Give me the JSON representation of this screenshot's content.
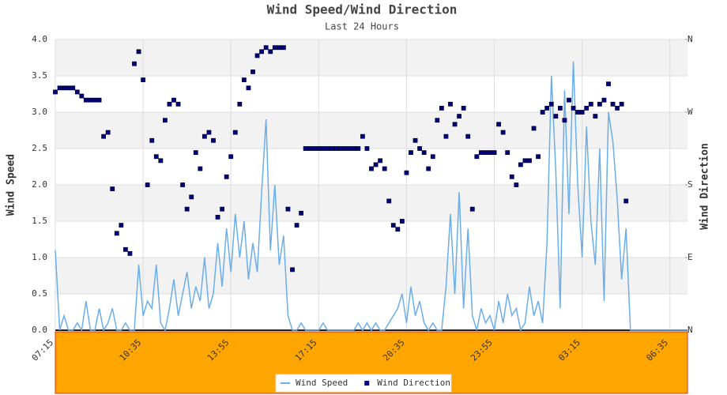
{
  "chart_data": {
    "type": "line",
    "title": "Wind Speed/Wind Direction",
    "subtitle": "Last 24 Hours",
    "ylabel": "Wind Speed",
    "y2label": "Wind Direction",
    "xlim": [
      0,
      1440
    ],
    "xticks": [
      {
        "value": 0,
        "label": "07:15"
      },
      {
        "value": 200,
        "label": "10:35"
      },
      {
        "value": 400,
        "label": "13:55"
      },
      {
        "value": 600,
        "label": "17:15"
      },
      {
        "value": 800,
        "label": "20:35"
      },
      {
        "value": 1000,
        "label": "23:55"
      },
      {
        "value": 1200,
        "label": "03:15"
      },
      {
        "value": 1400,
        "label": "06:35"
      }
    ],
    "ylim": [
      0,
      4
    ],
    "yticks": [
      {
        "value": 0,
        "label": "0.0"
      },
      0.5,
      {
        "value": 1,
        "label": "1.0"
      },
      1.5,
      {
        "value": 2,
        "label": "2.0"
      },
      2.5,
      {
        "value": 3,
        "label": "3.0"
      },
      3.5,
      {
        "value": 4,
        "label": "4.0"
      }
    ],
    "y2lim": [
      0,
      360
    ],
    "y2ticks": [
      {
        "value": 0,
        "label": "N"
      },
      {
        "value": 90,
        "label": "E"
      },
      {
        "value": 180,
        "label": "S"
      },
      {
        "value": 270,
        "label": "W"
      },
      {
        "value": 360,
        "label": "N"
      }
    ],
    "grid": true,
    "legend": "bottom",
    "series": [
      {
        "name": "Wind Speed",
        "type": "line",
        "color": "#6aaeea",
        "x": [
          0,
          10,
          20,
          30,
          40,
          50,
          60,
          70,
          80,
          90,
          100,
          110,
          120,
          130,
          140,
          150,
          160,
          170,
          180,
          190,
          200,
          210,
          220,
          230,
          240,
          250,
          260,
          270,
          280,
          290,
          300,
          310,
          320,
          330,
          340,
          350,
          360,
          370,
          380,
          390,
          400,
          410,
          420,
          430,
          440,
          450,
          460,
          470,
          480,
          490,
          500,
          510,
          520,
          530,
          540,
          550,
          560,
          570,
          580,
          590,
          600,
          610,
          620,
          630,
          640,
          650,
          660,
          670,
          680,
          690,
          700,
          710,
          720,
          730,
          740,
          750,
          760,
          770,
          780,
          790,
          800,
          810,
          820,
          830,
          840,
          850,
          860,
          870,
          880,
          890,
          900,
          910,
          920,
          930,
          940,
          950,
          960,
          970,
          980,
          990,
          1000,
          1010,
          1020,
          1030,
          1040,
          1050,
          1060,
          1070,
          1080,
          1090,
          1100,
          1110,
          1120,
          1130,
          1140,
          1150,
          1160,
          1170,
          1180,
          1190,
          1200,
          1210,
          1220,
          1230,
          1240,
          1250,
          1260,
          1270,
          1280,
          1290,
          1300,
          1310,
          1320,
          1330,
          1340,
          1350,
          1360,
          1370,
          1380,
          1390,
          1400,
          1410,
          1420,
          1430,
          1440
        ],
        "values": [
          1.1,
          0.0,
          0.2,
          0.0,
          0.0,
          0.1,
          0.0,
          0.4,
          0.0,
          0.0,
          0.3,
          0.0,
          0.1,
          0.3,
          0.0,
          0.0,
          0.1,
          0.0,
          0.0,
          0.9,
          0.2,
          0.4,
          0.3,
          0.9,
          0.1,
          0.0,
          0.3,
          0.7,
          0.2,
          0.5,
          0.8,
          0.3,
          0.6,
          0.4,
          1.0,
          0.3,
          0.5,
          1.2,
          0.6,
          1.4,
          0.8,
          1.6,
          1.0,
          1.5,
          0.7,
          1.2,
          0.8,
          1.9,
          2.9,
          1.1,
          2.0,
          0.9,
          1.3,
          0.2,
          0.0,
          0.0,
          0.1,
          0.0,
          0.0,
          0.0,
          0.0,
          0.1,
          0.0,
          0.0,
          0.0,
          0.0,
          0.0,
          0.0,
          0.0,
          0.1,
          0.0,
          0.1,
          0.0,
          0.1,
          0.0,
          0.0,
          0.1,
          0.2,
          0.3,
          0.5,
          0.1,
          0.6,
          0.2,
          0.4,
          0.1,
          0.0,
          0.1,
          0.0,
          0.0,
          0.6,
          1.6,
          0.5,
          1.9,
          0.3,
          1.4,
          0.2,
          0.0,
          0.3,
          0.1,
          0.2,
          0.0,
          0.4,
          0.1,
          0.5,
          0.2,
          0.3,
          0.0,
          0.1,
          0.6,
          0.2,
          0.4,
          0.1,
          1.2,
          3.5,
          2.2,
          0.3,
          3.3,
          1.6,
          3.7,
          2.0,
          1.0,
          2.8,
          1.5,
          0.9,
          2.5,
          0.4,
          3.0,
          2.6,
          1.8,
          0.7,
          1.4,
          0.0,
          0.0,
          0.0,
          0.0,
          0.0,
          0.0,
          0.0,
          0.0,
          0.0,
          0.0,
          0.0,
          0.0,
          0.0,
          0.0
        ]
      },
      {
        "name": "Wind Direction",
        "type": "scatter",
        "axis": "y2",
        "color": "#000080",
        "x": [
          0,
          10,
          20,
          30,
          40,
          50,
          60,
          70,
          80,
          90,
          100,
          110,
          120,
          130,
          140,
          150,
          160,
          170,
          180,
          190,
          200,
          210,
          220,
          230,
          240,
          250,
          260,
          270,
          280,
          290,
          300,
          310,
          320,
          330,
          340,
          350,
          360,
          370,
          380,
          390,
          400,
          410,
          420,
          430,
          440,
          450,
          460,
          470,
          480,
          490,
          500,
          510,
          520,
          530,
          540,
          550,
          560,
          570,
          580,
          590,
          600,
          610,
          620,
          630,
          640,
          650,
          660,
          670,
          680,
          690,
          700,
          710,
          720,
          730,
          740,
          750,
          760,
          770,
          780,
          790,
          800,
          810,
          820,
          830,
          840,
          850,
          860,
          870,
          880,
          890,
          900,
          910,
          920,
          930,
          940,
          950,
          960,
          970,
          980,
          990,
          1000,
          1010,
          1020,
          1030,
          1040,
          1050,
          1060,
          1070,
          1080,
          1090,
          1100,
          1110,
          1120,
          1130,
          1140,
          1150,
          1160,
          1170,
          1180,
          1190,
          1200,
          1210,
          1220,
          1230,
          1240,
          1250,
          1260,
          1270,
          1280,
          1290,
          1300
        ],
        "values": [
          295,
          300,
          300,
          300,
          300,
          295,
          290,
          285,
          285,
          285,
          285,
          240,
          245,
          175,
          120,
          130,
          100,
          95,
          330,
          345,
          310,
          180,
          235,
          215,
          210,
          260,
          280,
          285,
          280,
          180,
          150,
          165,
          220,
          200,
          240,
          245,
          235,
          140,
          150,
          190,
          215,
          245,
          280,
          310,
          300,
          320,
          340,
          345,
          350,
          345,
          350,
          350,
          350,
          150,
          75,
          130,
          145,
          225,
          225,
          225,
          225,
          225,
          225,
          225,
          225,
          225,
          225,
          225,
          225,
          225,
          240,
          225,
          200,
          205,
          210,
          200,
          160,
          130,
          125,
          135,
          195,
          220,
          235,
          225,
          220,
          200,
          215,
          260,
          275,
          240,
          280,
          255,
          265,
          275,
          240,
          150,
          215,
          220,
          220,
          220,
          220,
          255,
          245,
          220,
          190,
          180,
          205,
          210,
          210,
          250,
          215,
          270,
          275,
          280,
          265,
          275,
          260,
          285,
          275,
          270,
          270,
          275,
          280,
          265,
          280,
          285,
          305,
          280,
          275,
          280,
          160
        ]
      }
    ]
  }
}
